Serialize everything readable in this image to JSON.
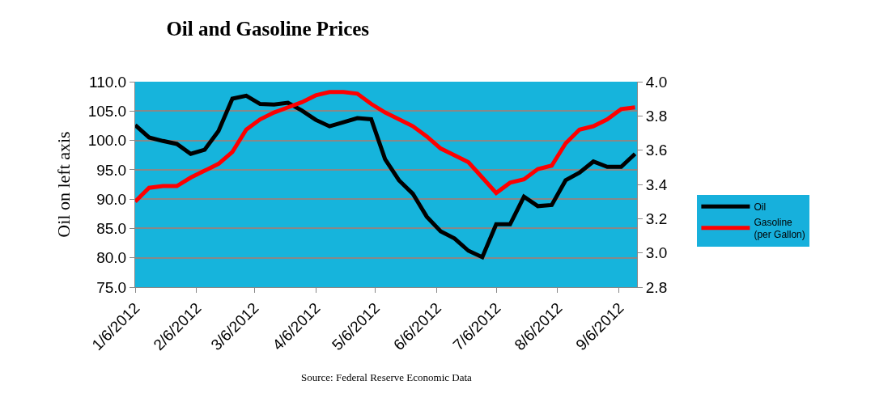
{
  "chart_data": {
    "type": "line",
    "title": "Oil and Gasoline Prices",
    "ylabel": "Oil on left axis",
    "x": [
      "2012-01-06",
      "2012-01-13",
      "2012-01-20",
      "2012-01-27",
      "2012-02-03",
      "2012-02-10",
      "2012-02-17",
      "2012-02-24",
      "2012-03-02",
      "2012-03-09",
      "2012-03-16",
      "2012-03-23",
      "2012-03-30",
      "2012-04-06",
      "2012-04-13",
      "2012-04-20",
      "2012-04-27",
      "2012-05-04",
      "2012-05-11",
      "2012-05-18",
      "2012-05-25",
      "2012-06-01",
      "2012-06-08",
      "2012-06-15",
      "2012-06-22",
      "2012-06-29",
      "2012-07-06",
      "2012-07-13",
      "2012-07-20",
      "2012-07-27",
      "2012-08-03",
      "2012-08-10",
      "2012-08-17",
      "2012-08-24",
      "2012-08-31",
      "2012-09-07",
      "2012-09-14"
    ],
    "series": [
      {
        "name": "Oil",
        "color": "#000000",
        "values": [
          102.6,
          100.5,
          99.9,
          99.4,
          97.7,
          98.4,
          101.6,
          107.1,
          107.6,
          106.2,
          106.1,
          106.4,
          105.1,
          103.5,
          102.4,
          103.1,
          103.8,
          103.6,
          96.8,
          93.2,
          90.9,
          87.0,
          84.5,
          83.3,
          81.2,
          80.1,
          85.7,
          85.7,
          90.4,
          88.8,
          89.0,
          93.2,
          94.5,
          96.4,
          95.5,
          95.5,
          97.7
        ]
      },
      {
        "name": "Gasoline\n(per Gallon)",
        "color": "#ff0000",
        "axis": "y2",
        "values": [
          3.3,
          3.38,
          3.39,
          3.39,
          3.44,
          3.48,
          3.52,
          3.59,
          3.72,
          3.78,
          3.82,
          3.85,
          3.88,
          3.92,
          3.94,
          3.94,
          3.93,
          3.87,
          3.82,
          3.78,
          3.74,
          3.68,
          3.61,
          3.57,
          3.53,
          3.44,
          3.35,
          3.41,
          3.43,
          3.49,
          3.51,
          3.64,
          3.72,
          3.74,
          3.78,
          3.84,
          3.85
        ]
      }
    ],
    "xlim": [
      "2012-01-06",
      "2012-09-15"
    ],
    "xticks": [
      {
        "value": "2012-01-06",
        "label": "1/6/2012"
      },
      {
        "value": "2012-02-06",
        "label": "2/6/2012"
      },
      {
        "value": "2012-03-06",
        "label": "3/6/2012"
      },
      {
        "value": "2012-04-06",
        "label": "4/6/2012"
      },
      {
        "value": "2012-05-06",
        "label": "5/6/2012"
      },
      {
        "value": "2012-06-06",
        "label": "6/6/2012"
      },
      {
        "value": "2012-07-06",
        "label": "7/6/2012"
      },
      {
        "value": "2012-08-06",
        "label": "8/6/2012"
      },
      {
        "value": "2012-09-06",
        "label": "9/6/2012"
      }
    ],
    "ylim": [
      75,
      110
    ],
    "yticks": [
      {
        "value": 75,
        "label": "75.0"
      },
      {
        "value": 80,
        "label": "80.0"
      },
      {
        "value": 85,
        "label": "85.0"
      },
      {
        "value": 90,
        "label": "90.0"
      },
      {
        "value": 95,
        "label": "95.0"
      },
      {
        "value": 100,
        "label": "100.0"
      },
      {
        "value": 105,
        "label": "105.0"
      },
      {
        "value": 110,
        "label": "110.0"
      }
    ],
    "y2lim": [
      2.8,
      4.0
    ],
    "y2ticks": [
      {
        "value": 2.8,
        "label": "2.8"
      },
      {
        "value": 3.0,
        "label": "3.0"
      },
      {
        "value": 3.2,
        "label": "3.2"
      },
      {
        "value": 3.4,
        "label": "3.4"
      },
      {
        "value": 3.6,
        "label": "3.6"
      },
      {
        "value": 3.8,
        "label": "3.8"
      },
      {
        "value": 4.0,
        "label": "4.0"
      }
    ],
    "grid": "y",
    "legend": "right",
    "marker": "none",
    "line_style": "solid",
    "annotations": [
      "Source: Federal Reserve Economic Data"
    ]
  }
}
